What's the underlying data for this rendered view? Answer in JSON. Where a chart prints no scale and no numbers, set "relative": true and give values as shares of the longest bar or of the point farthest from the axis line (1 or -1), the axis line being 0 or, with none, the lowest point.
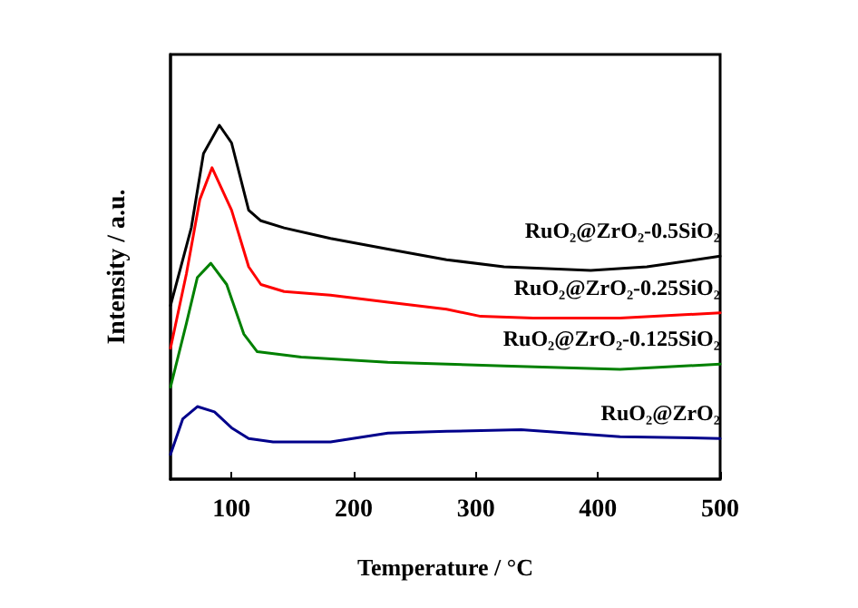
{
  "chart_data": {
    "type": "line",
    "relative": true,
    "xlabel": "Temperature / °C",
    "ylabel": "Intensity / a.u.",
    "xlim": [
      50,
      500
    ],
    "xticks": [
      100,
      200,
      300,
      400,
      500
    ],
    "tick_labels": "x",
    "grid": false,
    "legend": false,
    "marker": "none",
    "line_style": "solid",
    "series": [
      {
        "name": "RuO₂@ZrO₂-0.5SiO₂",
        "color": "#000000",
        "x": [
          50,
          67,
          77,
          90,
          100,
          114,
          124,
          143,
          181,
          228,
          276,
          323,
          394,
          440,
          500
        ],
        "values": [
          0.49,
          0.71,
          0.92,
          1.0,
          0.95,
          0.76,
          0.73,
          0.71,
          0.68,
          0.65,
          0.62,
          0.6,
          0.59,
          0.6,
          0.63
        ]
      },
      {
        "name": "RuO₂@ZrO₂-0.25SiO₂",
        "color": "#ff0000",
        "x": [
          50,
          63,
          74,
          84,
          100,
          114,
          124,
          143,
          181,
          228,
          276,
          304,
          347,
          418,
          500
        ],
        "values": [
          0.37,
          0.58,
          0.79,
          0.88,
          0.76,
          0.6,
          0.55,
          0.53,
          0.52,
          0.5,
          0.48,
          0.46,
          0.455,
          0.455,
          0.47
        ]
      },
      {
        "name": "RuO₂@ZrO₂-0.125SiO₂",
        "color": "#008000",
        "x": [
          50,
          63,
          72,
          83,
          96,
          110,
          121,
          157,
          228,
          323,
          418,
          500
        ],
        "values": [
          0.26,
          0.44,
          0.57,
          0.61,
          0.55,
          0.41,
          0.36,
          0.345,
          0.33,
          0.32,
          0.31,
          0.325
        ]
      },
      {
        "name": "RuO₂@ZrO₂",
        "color": "#00008b",
        "x": [
          50,
          60,
          72,
          86,
          100,
          114,
          134,
          181,
          228,
          276,
          337,
          418,
          500
        ],
        "values": [
          0.07,
          0.17,
          0.205,
          0.19,
          0.145,
          0.115,
          0.105,
          0.105,
          0.13,
          0.135,
          0.14,
          0.12,
          0.115
        ]
      }
    ]
  }
}
